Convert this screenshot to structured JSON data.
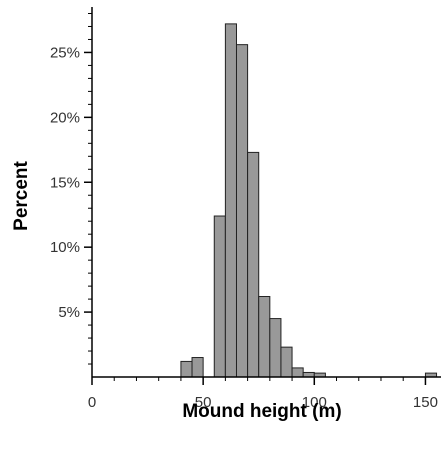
{
  "chart_data": {
    "type": "bar",
    "title": "",
    "xlabel": "Mound height (m)",
    "ylabel": "Percent",
    "bin_width": 5,
    "bins": [
      {
        "start": 40,
        "end": 45,
        "value": 1.2
      },
      {
        "start": 45,
        "end": 50,
        "value": 1.5
      },
      {
        "start": 50,
        "end": 55,
        "value": 0.0
      },
      {
        "start": 55,
        "end": 60,
        "value": 12.4
      },
      {
        "start": 60,
        "end": 65,
        "value": 27.2
      },
      {
        "start": 65,
        "end": 70,
        "value": 25.6
      },
      {
        "start": 70,
        "end": 75,
        "value": 17.3
      },
      {
        "start": 75,
        "end": 80,
        "value": 6.2
      },
      {
        "start": 80,
        "end": 85,
        "value": 4.5
      },
      {
        "start": 85,
        "end": 90,
        "value": 2.3
      },
      {
        "start": 90,
        "end": 95,
        "value": 0.7
      },
      {
        "start": 95,
        "end": 100,
        "value": 0.35
      },
      {
        "start": 100,
        "end": 105,
        "value": 0.3
      },
      {
        "start": 150,
        "end": 155,
        "value": 0.3
      }
    ],
    "xlim": [
      0,
      157
    ],
    "ylim": [
      0,
      28.5
    ],
    "x_ticks": [
      0,
      50,
      100,
      150
    ],
    "x_tick_labels": [
      "0",
      "50",
      "100",
      "150"
    ],
    "x_minor_step": 10,
    "y_ticks": [
      5,
      10,
      15,
      20,
      25
    ],
    "y_tick_labels": [
      "5%",
      "10%",
      "15%",
      "20%",
      "25%"
    ],
    "y_minor_step": 1,
    "grid": false,
    "colors": {
      "bar_fill": "#999999",
      "bar_stroke": "#222222",
      "axis": "#000000"
    }
  }
}
